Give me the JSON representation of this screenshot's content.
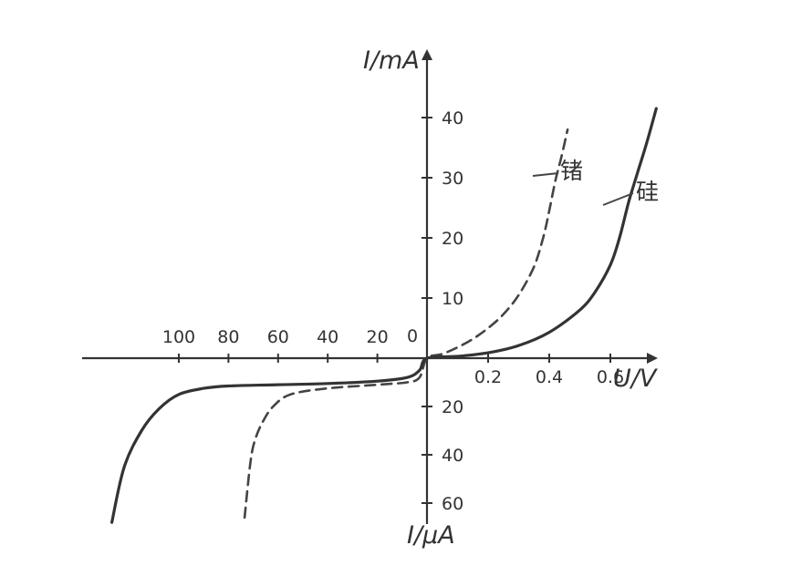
{
  "chart_data": {
    "type": "line",
    "title": "",
    "axes": {
      "x_positive_label": "U/V",
      "y_positive_label": "I/mA",
      "y_negative_label": "I/μA",
      "x_positive_ticks": [
        "0.2",
        "0.4",
        "0.6"
      ],
      "x_negative_ticks": [
        "100",
        "80",
        "60",
        "40",
        "20"
      ],
      "y_positive_ticks": [
        "10",
        "20",
        "30",
        "40"
      ],
      "y_negative_ticks": [
        "20",
        "40",
        "60"
      ],
      "origin_label": "0",
      "grid": false
    },
    "series": [
      {
        "name": "锗",
        "style": "dashed",
        "color": "#444444",
        "forward": {
          "x": [
            0,
            0.05,
            0.1,
            0.15,
            0.2,
            0.25,
            0.3,
            0.35,
            0.38,
            0.4,
            0.42,
            0.44,
            0.46
          ],
          "y": [
            0,
            0.7,
            1.8,
            3.2,
            5,
            7.3,
            10.5,
            15.2,
            20,
            24.5,
            29.5,
            33.5,
            38
          ]
        },
        "reverse": {
          "x": [
            0,
            3,
            8,
            20,
            40,
            55,
            62,
            66,
            69,
            71,
            73.5
          ],
          "y": [
            0,
            8,
            10,
            11,
            12.5,
            15,
            20,
            26,
            33,
            42,
            66
          ]
        }
      },
      {
        "name": "硅",
        "style": "solid",
        "color": "#333333",
        "forward": {
          "x": [
            0,
            0.1,
            0.2,
            0.3,
            0.4,
            0.5,
            0.55,
            0.6,
            0.63,
            0.66,
            0.69,
            0.72,
            0.75
          ],
          "y": [
            0,
            0.3,
            0.9,
            2.1,
            4.3,
            8,
            11,
            15.5,
            20,
            26,
            31,
            36,
            41.5
          ]
        },
        "reverse": {
          "x": [
            0,
            3,
            8,
            20,
            40,
            60,
            80,
            90,
            100,
            108,
            115,
            122,
            127
          ],
          "y": [
            0,
            5,
            8,
            9.5,
            10.5,
            11,
            11.5,
            12.5,
            15,
            21,
            30,
            45,
            68
          ]
        }
      }
    ]
  }
}
